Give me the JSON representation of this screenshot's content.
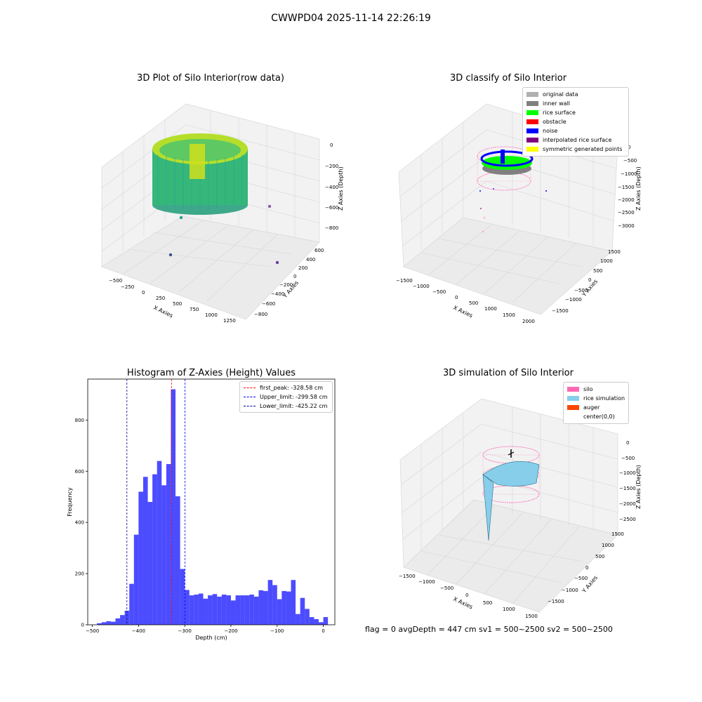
{
  "figure": {
    "suptitle": "CWWPD04 2025-11-14 22:26:19",
    "footer": "flag = 0     avgDepth = 447 cm  sv1 = 500~2500  sv2 = 500~2500"
  },
  "panels": {
    "raw": {
      "title": "3D Plot of Silo Interior(row data)",
      "xlabel": "X Axies",
      "ylabel": "Y Axies",
      "zlabel": "Z Axies (Depth)",
      "xticks": [
        "−500",
        "−250",
        "0",
        "250",
        "500",
        "750",
        "1000",
        "1250"
      ],
      "yticks": [
        "−800",
        "−600",
        "−400",
        "−200",
        "0",
        "200",
        "400",
        "600"
      ],
      "zticks": [
        "0",
        "−200",
        "−400",
        "−600",
        "−800"
      ]
    },
    "classify": {
      "title": "3D classify of Silo Interior",
      "xlabel": "X Axies",
      "ylabel": "Y Axies",
      "zlabel": "Z Axies (Depth)",
      "xticks": [
        "−1500",
        "−1000",
        "−500",
        "0",
        "500",
        "1000",
        "1500",
        "2000"
      ],
      "yticks": [
        "−1500",
        "−1000",
        "−500",
        "0",
        "500",
        "1000",
        "1500"
      ],
      "zticks": [
        "0",
        "−500",
        "−1000",
        "−1500",
        "−2000",
        "−2500",
        "−3000"
      ],
      "legend": [
        {
          "label": "original data",
          "color": "#b0b0b0"
        },
        {
          "label": "inner wall",
          "color": "#808080"
        },
        {
          "label": "rice surface",
          "color": "#00ff00"
        },
        {
          "label": "obstacle",
          "color": "#ff0000"
        },
        {
          "label": "noise",
          "color": "#0000ff"
        },
        {
          "label": "interpolated rice surface",
          "color": "#800080"
        },
        {
          "label": "symmetric generated points",
          "color": "#ffff00"
        }
      ]
    },
    "simulation": {
      "title": "3D simulation of Silo Interior",
      "xlabel": "X Axies",
      "ylabel": "Y Axies",
      "zlabel": "Z Axies (Depth)",
      "xticks": [
        "−1500",
        "−1000",
        "−500",
        "0",
        "500",
        "1000",
        "1500"
      ],
      "yticks": [
        "−1500",
        "−1000",
        "−500",
        "0",
        "500",
        "1000",
        "1500"
      ],
      "zticks": [
        "0",
        "−500",
        "−1000",
        "−1500",
        "−2000",
        "−2500"
      ],
      "legend": [
        {
          "label": "silo",
          "color": "#ff69b4"
        },
        {
          "label": "rice simulation",
          "color": "#87ceeb"
        },
        {
          "label": "auger",
          "color": "#ff4500"
        },
        {
          "label": "center(0,0)",
          "color": ""
        }
      ]
    }
  },
  "chart_data": [
    {
      "type": "histogram",
      "title": "Histogram of Z-Axies (Height) Values",
      "xlabel": "Depth (cm)",
      "ylabel": "Frequency",
      "xlim": [
        -510,
        25
      ],
      "ylim": [
        0,
        960
      ],
      "xticks": [
        -500,
        -400,
        -300,
        -200,
        -100,
        0
      ],
      "yticks": [
        0,
        200,
        400,
        600,
        800
      ],
      "bin_start": -490,
      "bin_width": 10,
      "values": [
        6,
        10,
        14,
        12,
        25,
        38,
        55,
        160,
        352,
        520,
        578,
        480,
        588,
        640,
        545,
        628,
        920,
        502,
        218,
        136,
        115,
        118,
        122,
        102,
        115,
        120,
        110,
        118,
        115,
        95,
        115,
        115,
        115,
        118,
        110,
        135,
        132,
        175,
        155,
        100,
        132,
        130,
        175,
        42,
        105,
        62,
        30,
        22,
        10,
        30
      ],
      "bar_color": "#0000ff",
      "lines": [
        {
          "label": "first_peak: -328.58 cm",
          "x": -328.58,
          "color": "#ff0000"
        },
        {
          "label": "Upper_limit: -299.58 cm",
          "x": -299.58,
          "color": "#0000ff"
        },
        {
          "label": "Lower_limit: -425.22 cm",
          "x": -425.22,
          "color": "#00008b"
        }
      ],
      "legend_position": "top-right"
    }
  ]
}
